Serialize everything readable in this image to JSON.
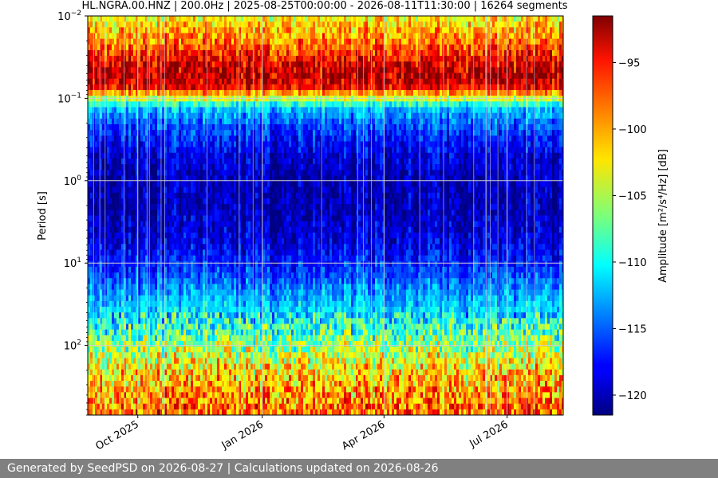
{
  "chart_data": {
    "type": "heatmap",
    "title": "HL.NGRA.00.HNZ | 200.0Hz | 2025-08-25T00:00:00 - 2026-08-11T11:30:00 | 16264 segments",
    "ylabel": "Period [s]",
    "colorbar_label": "Amplitude [m²/s⁴/Hz] [dB]",
    "x_range": [
      "2025-08-25",
      "2026-08-11"
    ],
    "x_ticks": [
      {
        "date": "2025-10-01",
        "label": "Oct 2025"
      },
      {
        "date": "2026-01-01",
        "label": "Jan 2026"
      },
      {
        "date": "2026-04-01",
        "label": "Apr 2026"
      },
      {
        "date": "2026-07-01",
        "label": "Jul 2026"
      }
    ],
    "y_scale": "log",
    "y_inverted": true,
    "y_range": [
      0.01,
      700
    ],
    "y_ticks": [
      {
        "value": 0.01,
        "base": "10",
        "exp": "−2"
      },
      {
        "value": 0.1,
        "base": "10",
        "exp": "−1"
      },
      {
        "value": 1,
        "base": "10",
        "exp": "0"
      },
      {
        "value": 10,
        "base": "10",
        "exp": "1"
      },
      {
        "value": 100,
        "base": "10",
        "exp": "2"
      }
    ],
    "colorbar": {
      "colormap": "jet",
      "range": [
        -121.5,
        -91.5
      ],
      "ticks": [
        -95,
        -100,
        -105,
        -110,
        -115,
        -120
      ],
      "tick_labels": [
        "−95",
        "−100",
        "−105",
        "−110",
        "−115",
        "−120"
      ]
    },
    "grid": true,
    "profile": {
      "period_s": [
        0.01,
        0.02,
        0.04,
        0.05,
        0.07,
        0.1,
        0.13,
        0.2,
        0.3,
        0.5,
        1,
        2,
        5,
        10,
        20,
        50,
        100,
        200,
        700
      ],
      "amplitude_db": [
        -103,
        -99,
        -94,
        -93,
        -94,
        -104,
        -112,
        -115,
        -117,
        -119,
        -120,
        -120,
        -119,
        -117,
        -114,
        -110,
        -106,
        -102,
        -98
      ]
    }
  },
  "footer": {
    "text": "Generated by SeedPSD on 2026-08-27 | Calculations updated on 2026-08-26"
  }
}
